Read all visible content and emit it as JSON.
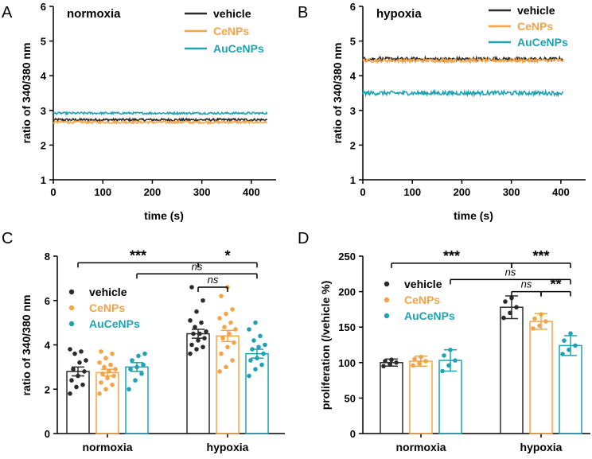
{
  "colors": {
    "vehicle": "#2b2b2b",
    "CeNPs": "#f5a347",
    "AuCeNPs": "#1fa2b4",
    "axis": "#000000"
  },
  "chart_data": [
    {
      "id": "A",
      "panel": "A",
      "type": "line",
      "title": "normoxia",
      "xlabel": "time (s)",
      "ylabel": "ratio of 340/380 nm",
      "xlim": [
        0,
        450
      ],
      "ylim": [
        1,
        6
      ],
      "xticks": [
        0,
        100,
        200,
        300,
        400
      ],
      "yticks": [
        1,
        2,
        3,
        4,
        5,
        6
      ],
      "legend_position": "top-right",
      "series": [
        {
          "name": "vehicle",
          "color": "#2b2b2b",
          "mean": 2.73,
          "noise": 0.035,
          "x_end": 432
        },
        {
          "name": "CeNPs",
          "color": "#f5a347",
          "mean": 2.66,
          "noise": 0.035,
          "x_end": 432
        },
        {
          "name": "AuCeNPs",
          "color": "#1fa2b4",
          "mean": 2.92,
          "noise": 0.03,
          "x_end": 432
        }
      ]
    },
    {
      "id": "B",
      "panel": "B",
      "type": "line",
      "title": "hypoxia",
      "xlabel": "time (s)",
      "ylabel": "ratio of 340/380 nm",
      "xlim": [
        0,
        450
      ],
      "ylim": [
        1,
        6
      ],
      "xticks": [
        0,
        100,
        200,
        300,
        400
      ],
      "yticks": [
        1,
        2,
        3,
        4,
        5,
        6
      ],
      "legend_position": "top-right",
      "series": [
        {
          "name": "vehicle",
          "color": "#2b2b2b",
          "mean": 4.48,
          "noise": 0.05,
          "x_end": 405
        },
        {
          "name": "CeNPs",
          "color": "#f5a347",
          "mean": 4.44,
          "noise": 0.05,
          "x_end": 405
        },
        {
          "name": "AuCeNPs",
          "color": "#1fa2b4",
          "mean": 3.5,
          "noise": 0.06,
          "x_end": 405
        }
      ]
    },
    {
      "id": "C",
      "panel": "C",
      "type": "bar",
      "title": "",
      "xlabel": "",
      "ylabel": "ratio of 340/380 nm",
      "ylim": [
        0,
        8
      ],
      "yticks": [
        0,
        2,
        4,
        6,
        8
      ],
      "categories": [
        "normoxia",
        "hypoxia"
      ],
      "legend_position": "top-left",
      "series": [
        {
          "name": "vehicle",
          "color": "#2b2b2b",
          "values": [
            2.8,
            4.5
          ],
          "errors": [
            0.2,
            0.2
          ],
          "points": [
            [
              1.8,
              2.1,
              2.2,
              2.4,
              2.6,
              2.8,
              2.9,
              3.2,
              3.3,
              3.6,
              3.7,
              3.8
            ],
            [
              3.6,
              3.8,
              3.9,
              4.0,
              4.2,
              4.3,
              4.5,
              4.5,
              4.6,
              4.8,
              5.0,
              5.1,
              5.5,
              6.0,
              6.6
            ]
          ]
        },
        {
          "name": "CeNPs",
          "color": "#f5a347",
          "values": [
            2.75,
            4.4
          ],
          "errors": [
            0.15,
            0.25
          ],
          "points": [
            [
              1.8,
              2.0,
              2.2,
              2.3,
              2.5,
              2.6,
              2.7,
              2.8,
              2.9,
              3.0,
              3.1,
              3.2,
              3.4,
              3.6,
              3.7
            ],
            [
              2.8,
              3.0,
              3.3,
              3.6,
              3.9,
              4.1,
              4.3,
              4.5,
              4.7,
              4.8,
              5.0,
              5.2,
              5.4,
              5.6,
              6.2,
              6.6
            ]
          ]
        },
        {
          "name": "AuCeNPs",
          "color": "#1fa2b4",
          "values": [
            3.0,
            3.6
          ],
          "errors": [
            0.2,
            0.2
          ],
          "points": [
            [
              2.0,
              2.4,
              2.7,
              2.9,
              3.0,
              3.1,
              3.3,
              3.5,
              3.6
            ],
            [
              2.6,
              2.9,
              3.1,
              3.3,
              3.4,
              3.6,
              3.8,
              3.9,
              4.0,
              4.2,
              4.4,
              4.7,
              5.0
            ]
          ]
        }
      ],
      "annotations": [
        {
          "label": "***",
          "from": [
            0,
            0
          ],
          "to": [
            1,
            0
          ],
          "y": 7.7,
          "style": "stars"
        },
        {
          "label": "*",
          "from": [
            1,
            0
          ],
          "to": [
            1,
            2
          ],
          "y": 7.7,
          "style": "stars"
        },
        {
          "label": "ns",
          "from": [
            0,
            2
          ],
          "to": [
            1,
            2
          ],
          "y": 7.2,
          "style": "ns"
        },
        {
          "label": "ns",
          "from": [
            1,
            0
          ],
          "to": [
            1,
            1
          ],
          "y": 6.6,
          "style": "ns"
        }
      ]
    },
    {
      "id": "D",
      "panel": "D",
      "type": "bar",
      "title": "",
      "xlabel": "",
      "ylabel": "proliferation (/vehicle %)",
      "ylim": [
        0,
        250
      ],
      "yticks": [
        0,
        50,
        100,
        150,
        200,
        250
      ],
      "categories": [
        "normoxia",
        "hypoxia"
      ],
      "legend_position": "top-left",
      "series": [
        {
          "name": "vehicle",
          "color": "#2b2b2b",
          "values": [
            100,
            178
          ],
          "errors": [
            5,
            16
          ],
          "points": [
            [
              95,
              98,
              100,
              102,
              104
            ],
            [
              163,
              170,
              178,
              186,
              191
            ]
          ]
        },
        {
          "name": "CeNPs",
          "color": "#f5a347",
          "values": [
            102,
            158
          ],
          "errors": [
            7,
            11
          ],
          "points": [
            [
              96,
              99,
              102,
              105,
              108
            ],
            [
              148,
              152,
              158,
              162,
              168
            ]
          ]
        },
        {
          "name": "AuCeNPs",
          "color": "#1fa2b4",
          "values": [
            103,
            124
          ],
          "errors": [
            15,
            14
          ],
          "points": [
            [
              88,
              96,
              103,
              110,
              118
            ],
            [
              112,
              118,
              124,
              131,
              141
            ]
          ]
        }
      ],
      "annotations": [
        {
          "label": "***",
          "from": [
            0,
            0
          ],
          "to": [
            1,
            0
          ],
          "y": 240,
          "style": "stars"
        },
        {
          "label": "***",
          "from": [
            1,
            0
          ],
          "to": [
            1,
            2
          ],
          "y": 240,
          "style": "stars"
        },
        {
          "label": "ns",
          "from": [
            0,
            2
          ],
          "to": [
            1,
            2
          ],
          "y": 217,
          "style": "ns"
        },
        {
          "label": "ns",
          "from": [
            1,
            0
          ],
          "to": [
            1,
            1
          ],
          "y": 200,
          "style": "ns"
        },
        {
          "label": "**",
          "from": [
            1,
            1
          ],
          "to": [
            1,
            2
          ],
          "y": 200,
          "style": "stars"
        }
      ]
    }
  ]
}
